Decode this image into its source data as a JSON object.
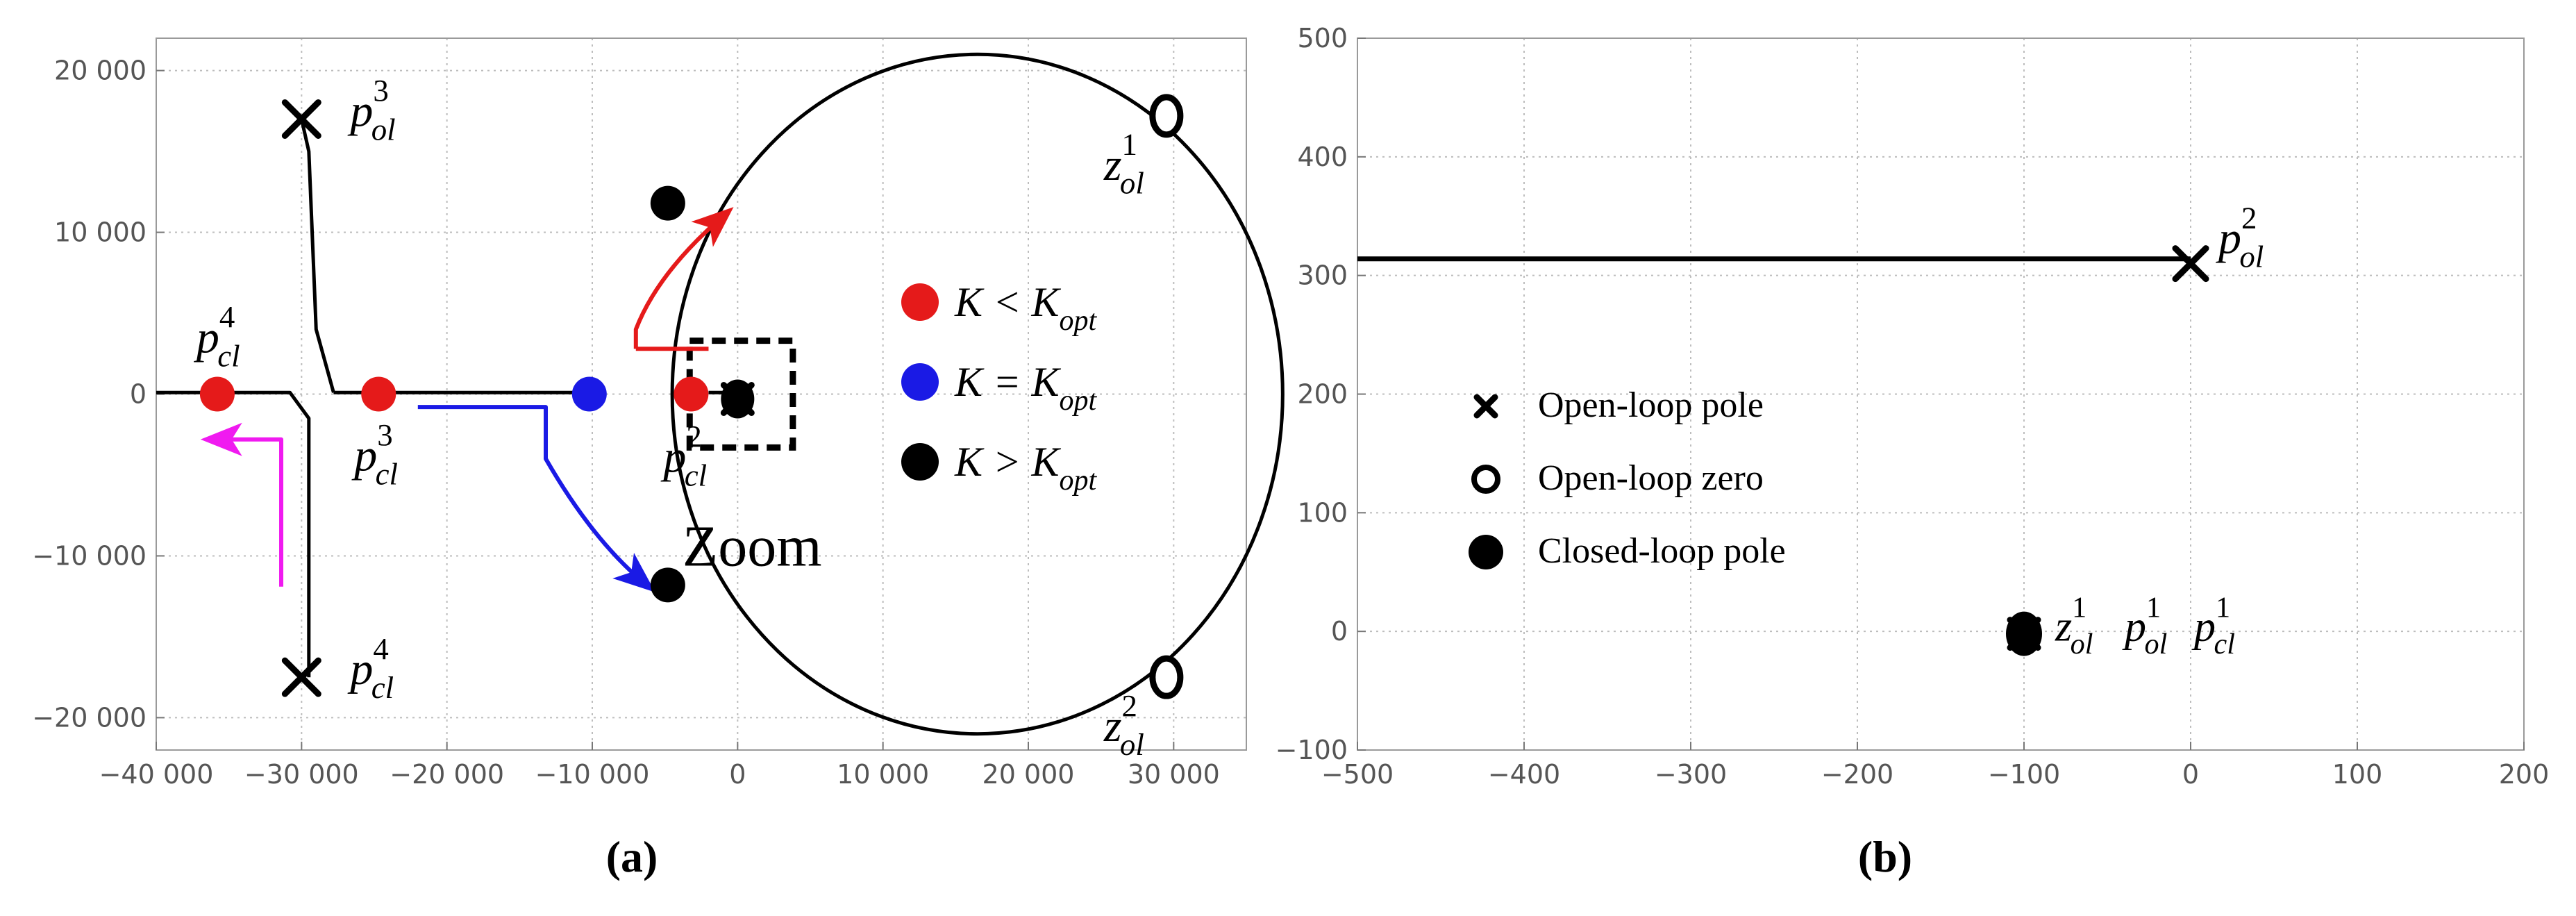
{
  "chart_data": [
    {
      "type": "scatter",
      "caption": "(a)",
      "xlim": [
        -40000,
        35000
      ],
      "ylim": [
        -22000,
        22000
      ],
      "x_ticks": [
        {
          "value": -40000,
          "label": "−40 000"
        },
        {
          "value": -30000,
          "label": "−30 000"
        },
        {
          "value": -20000,
          "label": "−20 000"
        },
        {
          "value": -10000,
          "label": "−10 000"
        },
        {
          "value": 0,
          "label": "0"
        },
        {
          "value": 10000,
          "label": "10 000"
        },
        {
          "value": 20000,
          "label": "20 000"
        },
        {
          "value": 30000,
          "label": "30 000"
        }
      ],
      "y_ticks": [
        {
          "value": -20000,
          "label": "−20 000"
        },
        {
          "value": -10000,
          "label": "−10 000"
        },
        {
          "value": 0,
          "label": "0"
        },
        {
          "value": 10000,
          "label": "10 000"
        },
        {
          "value": 20000,
          "label": "20 000"
        }
      ],
      "grid": true,
      "colors": {
        "red": "#e51a1a",
        "blue": "#1a1ae5",
        "black": "#000000",
        "magenta": "#f01af0"
      },
      "open_loop_poles": [
        {
          "x": -30000,
          "y": 17000,
          "label": "p",
          "sup": "3",
          "sub": "ol"
        },
        {
          "x": -30000,
          "y": -17500,
          "label": "p",
          "sup": "4",
          "sub": "cl"
        }
      ],
      "open_loop_zeros": [
        {
          "x": 29500,
          "y": 17200,
          "label": "z",
          "sup": "1",
          "sub": "ol"
        },
        {
          "x": 29500,
          "y": -17500,
          "label": "z",
          "sup": "2",
          "sub": "ol"
        }
      ],
      "closed_loop_poles": [
        {
          "x": -35800,
          "y": 0,
          "group": "red",
          "label": "p",
          "sup": "4",
          "sub": "cl"
        },
        {
          "x": -24700,
          "y": 0,
          "group": "red",
          "label": "p",
          "sup": "3",
          "sub": "cl"
        },
        {
          "x": -3200,
          "y": 0,
          "group": "red",
          "label": "p",
          "sup": "2",
          "sub": "cl"
        },
        {
          "x": -10200,
          "y": 0,
          "group": "blue"
        },
        {
          "x": -4800,
          "y": 11800,
          "group": "black"
        },
        {
          "x": -4800,
          "y": -11800,
          "group": "black"
        }
      ],
      "loci": [
        {
          "name": "real-axis-left",
          "points": [
            [
              -40000,
              100
            ],
            [
              -30800,
              100
            ],
            [
              -29500,
              -1500
            ],
            [
              -29500,
              -17500
            ]
          ]
        },
        {
          "name": "branch-top",
          "points": [
            [
              -30000,
              17000
            ],
            [
              -29500,
              15000
            ],
            [
              -29000,
              4000
            ],
            [
              -27800,
              100
            ]
          ]
        },
        {
          "name": "real-axis-right",
          "points": [
            [
              -27800,
              100
            ],
            [
              -10200,
              100
            ]
          ]
        },
        {
          "name": "circle",
          "center": [
            16500,
            0
          ],
          "radius": 21000,
          "points": [
            [
              -2000,
              100
            ],
            [
              -400,
              100
            ]
          ]
        }
      ],
      "legend": [
        {
          "color": "red",
          "text": "K < K",
          "sub": "opt"
        },
        {
          "color": "blue",
          "text": "K = K",
          "sub": "opt"
        },
        {
          "color": "black",
          "text": "K > K",
          "sub": "opt"
        }
      ],
      "zoom": {
        "text": "Zoom",
        "x0": -3300,
        "x1": 3800,
        "y0": -3300,
        "y1": 3300
      },
      "arrows": [
        {
          "color": "red",
          "points": [
            [
              -7000,
              2800
            ],
            [
              -7000,
              4000
            ],
            [
              -5500,
              7500
            ],
            [
              -1000,
              11000
            ]
          ]
        },
        {
          "color": "red",
          "points": [
            [
              -7000,
              2800
            ],
            [
              -2000,
              2800
            ]
          ]
        },
        {
          "color": "blue",
          "points": [
            [
              -22000,
              -800
            ],
            [
              -13200,
              -800
            ],
            [
              -13200,
              -4000
            ],
            [
              -10000,
              -9000
            ],
            [
              -6400,
              -11700
            ]
          ]
        },
        {
          "color": "magenta",
          "points": [
            [
              -31400,
              -11900
            ],
            [
              -31400,
              -2800
            ],
            [
              -36000,
              -2800
            ]
          ]
        }
      ]
    },
    {
      "type": "scatter",
      "caption": "(b)",
      "xlim": [
        -500,
        200
      ],
      "ylim": [
        -100,
        500
      ],
      "x_ticks": [
        {
          "value": -500,
          "label": "−500"
        },
        {
          "value": -400,
          "label": "−400"
        },
        {
          "value": -300,
          "label": "−300"
        },
        {
          "value": -200,
          "label": "−200"
        },
        {
          "value": -100,
          "label": "−100"
        },
        {
          "value": 0,
          "label": "0"
        },
        {
          "value": 100,
          "label": "100"
        },
        {
          "value": 200,
          "label": "200"
        }
      ],
      "y_ticks": [
        {
          "value": -100,
          "label": "−100"
        },
        {
          "value": 0,
          "label": "0"
        },
        {
          "value": 100,
          "label": "100"
        },
        {
          "value": 200,
          "label": "200"
        },
        {
          "value": 300,
          "label": "300"
        },
        {
          "value": 400,
          "label": "400"
        },
        {
          "value": 500,
          "label": "500"
        }
      ],
      "grid": true,
      "open_loop_pole": {
        "x": 0,
        "y": 310,
        "label": "p",
        "sup": "2",
        "sub": "ol"
      },
      "locus": [
        [
          -500,
          314
        ],
        [
          0,
          314
        ]
      ],
      "coincident_point": {
        "x": -100,
        "y": -2,
        "labels": [
          {
            "label": "z",
            "sup": "1",
            "sub": "ol"
          },
          {
            "label": "p",
            "sup": "1",
            "sub": "ol"
          },
          {
            "label": "p",
            "sup": "1",
            "sub": "cl"
          }
        ]
      },
      "legend": [
        {
          "marker": "cross",
          "text": "Open-loop pole"
        },
        {
          "marker": "ring",
          "text": "Open-loop zero"
        },
        {
          "marker": "dot",
          "text": "Closed-loop pole"
        }
      ]
    }
  ]
}
